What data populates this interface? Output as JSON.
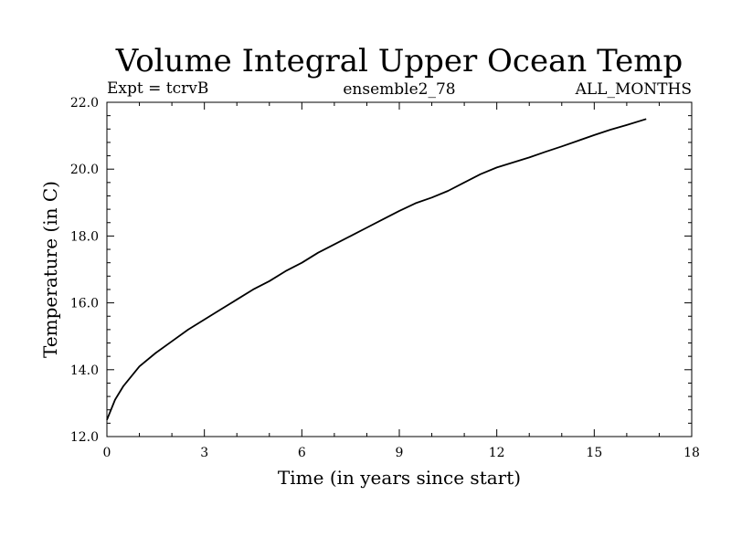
{
  "chart_data": {
    "type": "line",
    "title": "Volume Integral Upper Ocean Temp",
    "subtitle_left": "Expt = tcrvB",
    "subtitle_center": "ensemble2_78",
    "subtitle_right": "ALL_MONTHS",
    "xlabel": "Time (in years since start)",
    "ylabel": "Temperature (in C)",
    "xlim": [
      0,
      18
    ],
    "ylim": [
      12.0,
      22.0
    ],
    "x_ticks": [
      0,
      3,
      6,
      9,
      12,
      15,
      18
    ],
    "x_tick_labels": [
      "0",
      "3",
      "6",
      "9",
      "12",
      "15",
      "18"
    ],
    "y_ticks": [
      12,
      14,
      16,
      18,
      20,
      22
    ],
    "y_tick_labels": [
      "12.0",
      "14.0",
      "16.0",
      "18.0",
      "20.0",
      "22.0"
    ],
    "grid": false,
    "series": [
      {
        "name": "Temperature",
        "color": "#000000",
        "x": [
          0,
          0.25,
          0.5,
          1.0,
          1.5,
          2.0,
          2.5,
          3.0,
          3.5,
          4.0,
          4.5,
          5.0,
          5.5,
          6.0,
          6.5,
          7.0,
          7.5,
          8.0,
          8.5,
          9.0,
          9.5,
          10.0,
          10.5,
          11.0,
          11.5,
          12.0,
          12.5,
          13.0,
          13.5,
          14.0,
          14.5,
          15.0,
          15.5,
          16.0,
          16.6
        ],
        "y": [
          12.5,
          13.1,
          13.5,
          14.1,
          14.5,
          14.85,
          15.2,
          15.5,
          15.8,
          16.1,
          16.4,
          16.65,
          16.95,
          17.2,
          17.5,
          17.75,
          18.0,
          18.25,
          18.5,
          18.75,
          18.98,
          19.15,
          19.35,
          19.6,
          19.85,
          20.05,
          20.2,
          20.35,
          20.52,
          20.68,
          20.85,
          21.02,
          21.18,
          21.32,
          21.5
        ]
      }
    ]
  }
}
